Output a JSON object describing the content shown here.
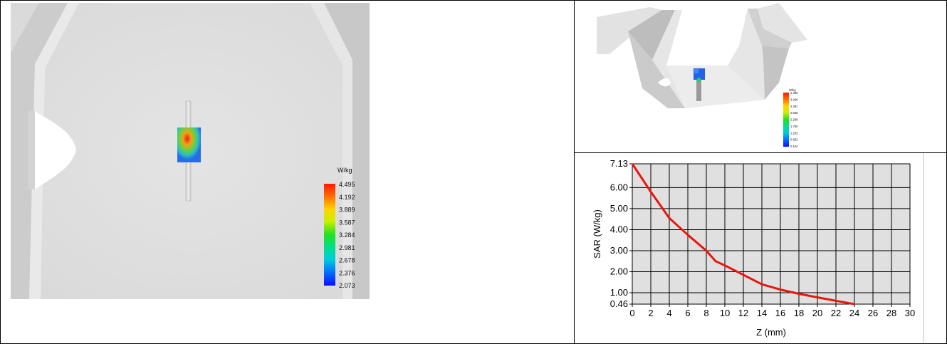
{
  "left_view": {
    "legend": {
      "unit": "W/kg",
      "values": [
        "4.495",
        "4.192",
        "3.889",
        "3.587",
        "3.284",
        "2.981",
        "2.678",
        "2.376",
        "2.073"
      ]
    }
  },
  "top_right_view": {
    "legend": {
      "unit": "W/kg",
      "values": [
        "4.495",
        "3.946",
        "3.397",
        "2.848",
        "2.299",
        "1.750",
        "1.202",
        "0.653",
        "0.104"
      ]
    }
  },
  "colors": {
    "curve": "#e8160c",
    "plot_background": "#e0e0e0",
    "grid": "#000000"
  },
  "chart_data": {
    "type": "line",
    "xlabel": "Z (mm)",
    "ylabel": "SAR (W/kg)",
    "xlim": [
      0,
      30
    ],
    "ylim": [
      0.46,
      7.13
    ],
    "x_ticks": [
      0,
      2,
      4,
      6,
      8,
      10,
      12,
      14,
      16,
      18,
      20,
      22,
      24,
      26,
      28,
      30
    ],
    "y_ticks": [
      {
        "value": 7.13,
        "label": "7.13"
      },
      {
        "value": 6.0,
        "label": "6.00"
      },
      {
        "value": 5.0,
        "label": "5.00"
      },
      {
        "value": 4.0,
        "label": "4.00"
      },
      {
        "value": 3.0,
        "label": "3.00"
      },
      {
        "value": 2.0,
        "label": "2.00"
      },
      {
        "value": 1.0,
        "label": "1.00"
      },
      {
        "value": 0.46,
        "label": "0.46"
      }
    ],
    "grid": true,
    "series": [
      {
        "x": [
          0,
          2,
          4,
          6,
          8,
          9,
          10,
          12,
          14,
          16,
          18,
          20,
          22,
          24
        ],
        "y": [
          7.13,
          5.8,
          4.55,
          3.75,
          3.0,
          2.5,
          2.3,
          1.85,
          1.4,
          1.15,
          0.95,
          0.78,
          0.62,
          0.46
        ]
      }
    ]
  }
}
